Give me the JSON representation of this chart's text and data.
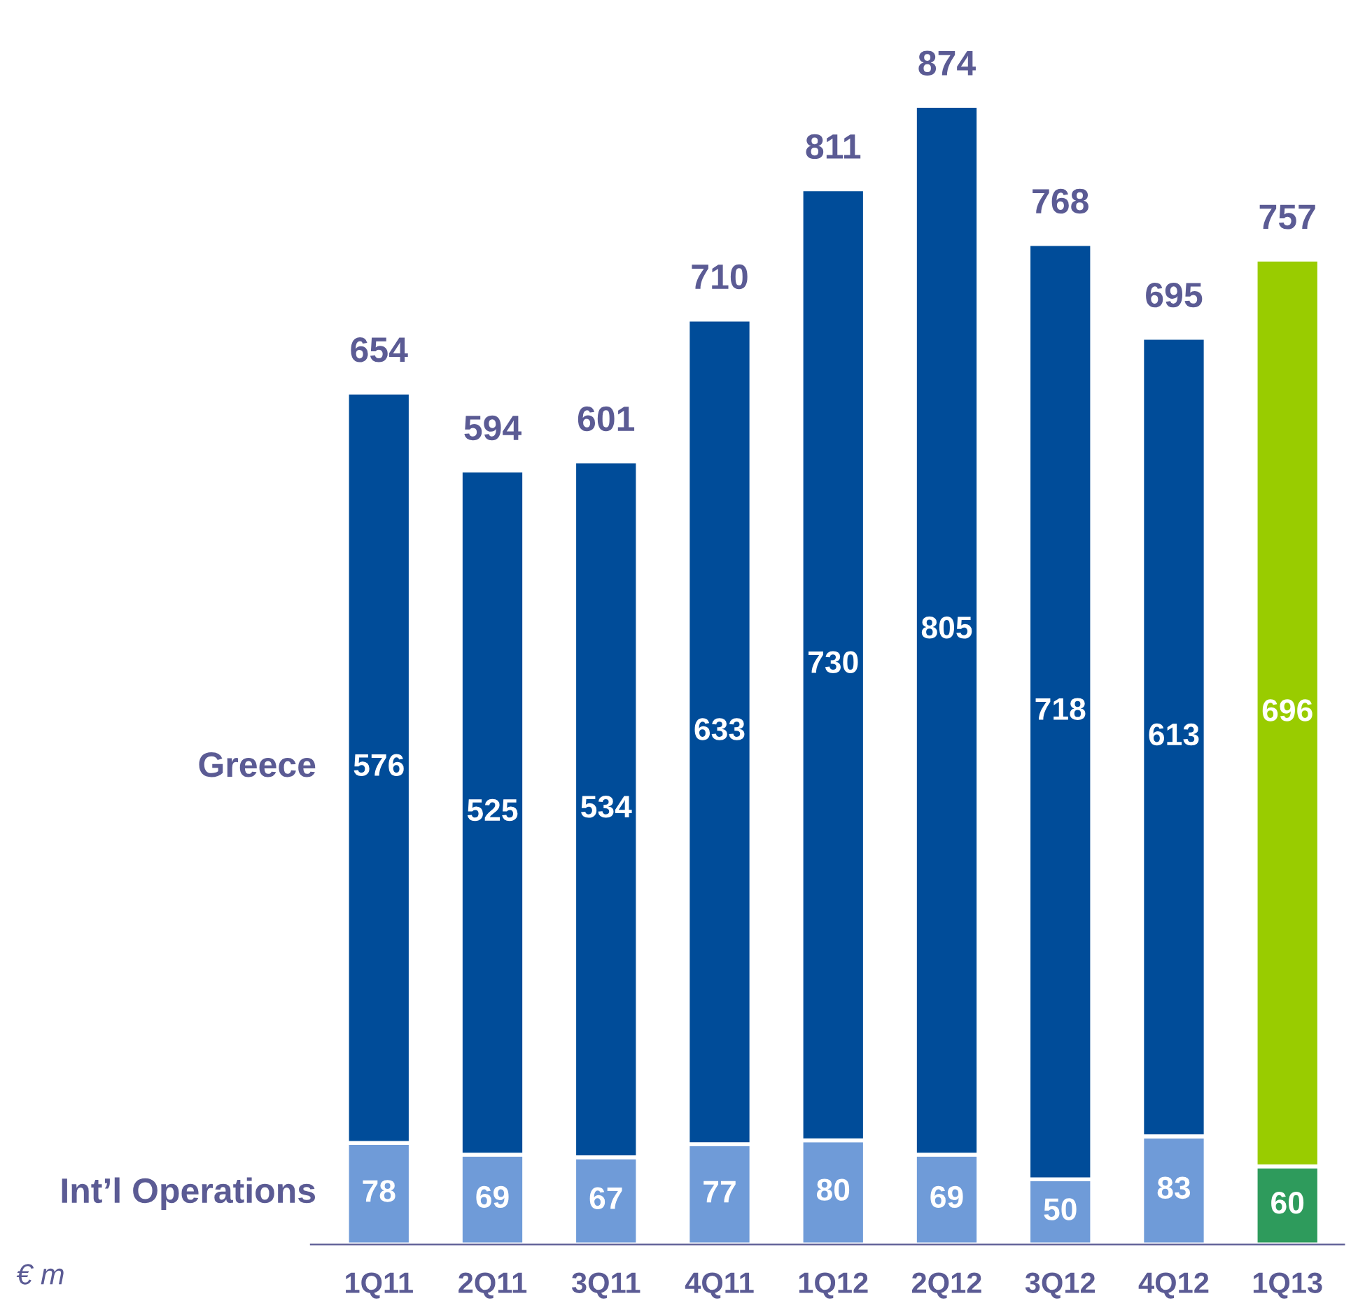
{
  "chart_data": {
    "type": "bar",
    "stacked": true,
    "data_labels": true,
    "tick_labels": "x",
    "grid": false,
    "legend": false,
    "categories": [
      "1Q11",
      "2Q11",
      "3Q11",
      "4Q11",
      "1Q12",
      "2Q12",
      "3Q12",
      "4Q12",
      "1Q13"
    ],
    "series": [
      {
        "name": "Int’l Operations",
        "colors": [
          "#6f9bd8",
          "#6f9bd8",
          "#6f9bd8",
          "#6f9bd8",
          "#6f9bd8",
          "#6f9bd8",
          "#6f9bd8",
          "#6f9bd8",
          "#2e9b5c"
        ],
        "values": [
          78,
          69,
          67,
          77,
          80,
          69,
          50,
          83,
          60
        ]
      },
      {
        "name": "Greece",
        "colors": [
          "#004c99",
          "#004c99",
          "#004c99",
          "#004c99",
          "#004c99",
          "#004c99",
          "#004c99",
          "#004c99",
          "#99cc00"
        ],
        "values": [
          576,
          525,
          534,
          633,
          730,
          805,
          718,
          613,
          696
        ]
      }
    ],
    "totals": [
      "654",
      "594",
      "601",
      "710",
      "811",
      "874",
      "768",
      "695",
      "757"
    ],
    "annotations": [
      "€ m"
    ]
  }
}
